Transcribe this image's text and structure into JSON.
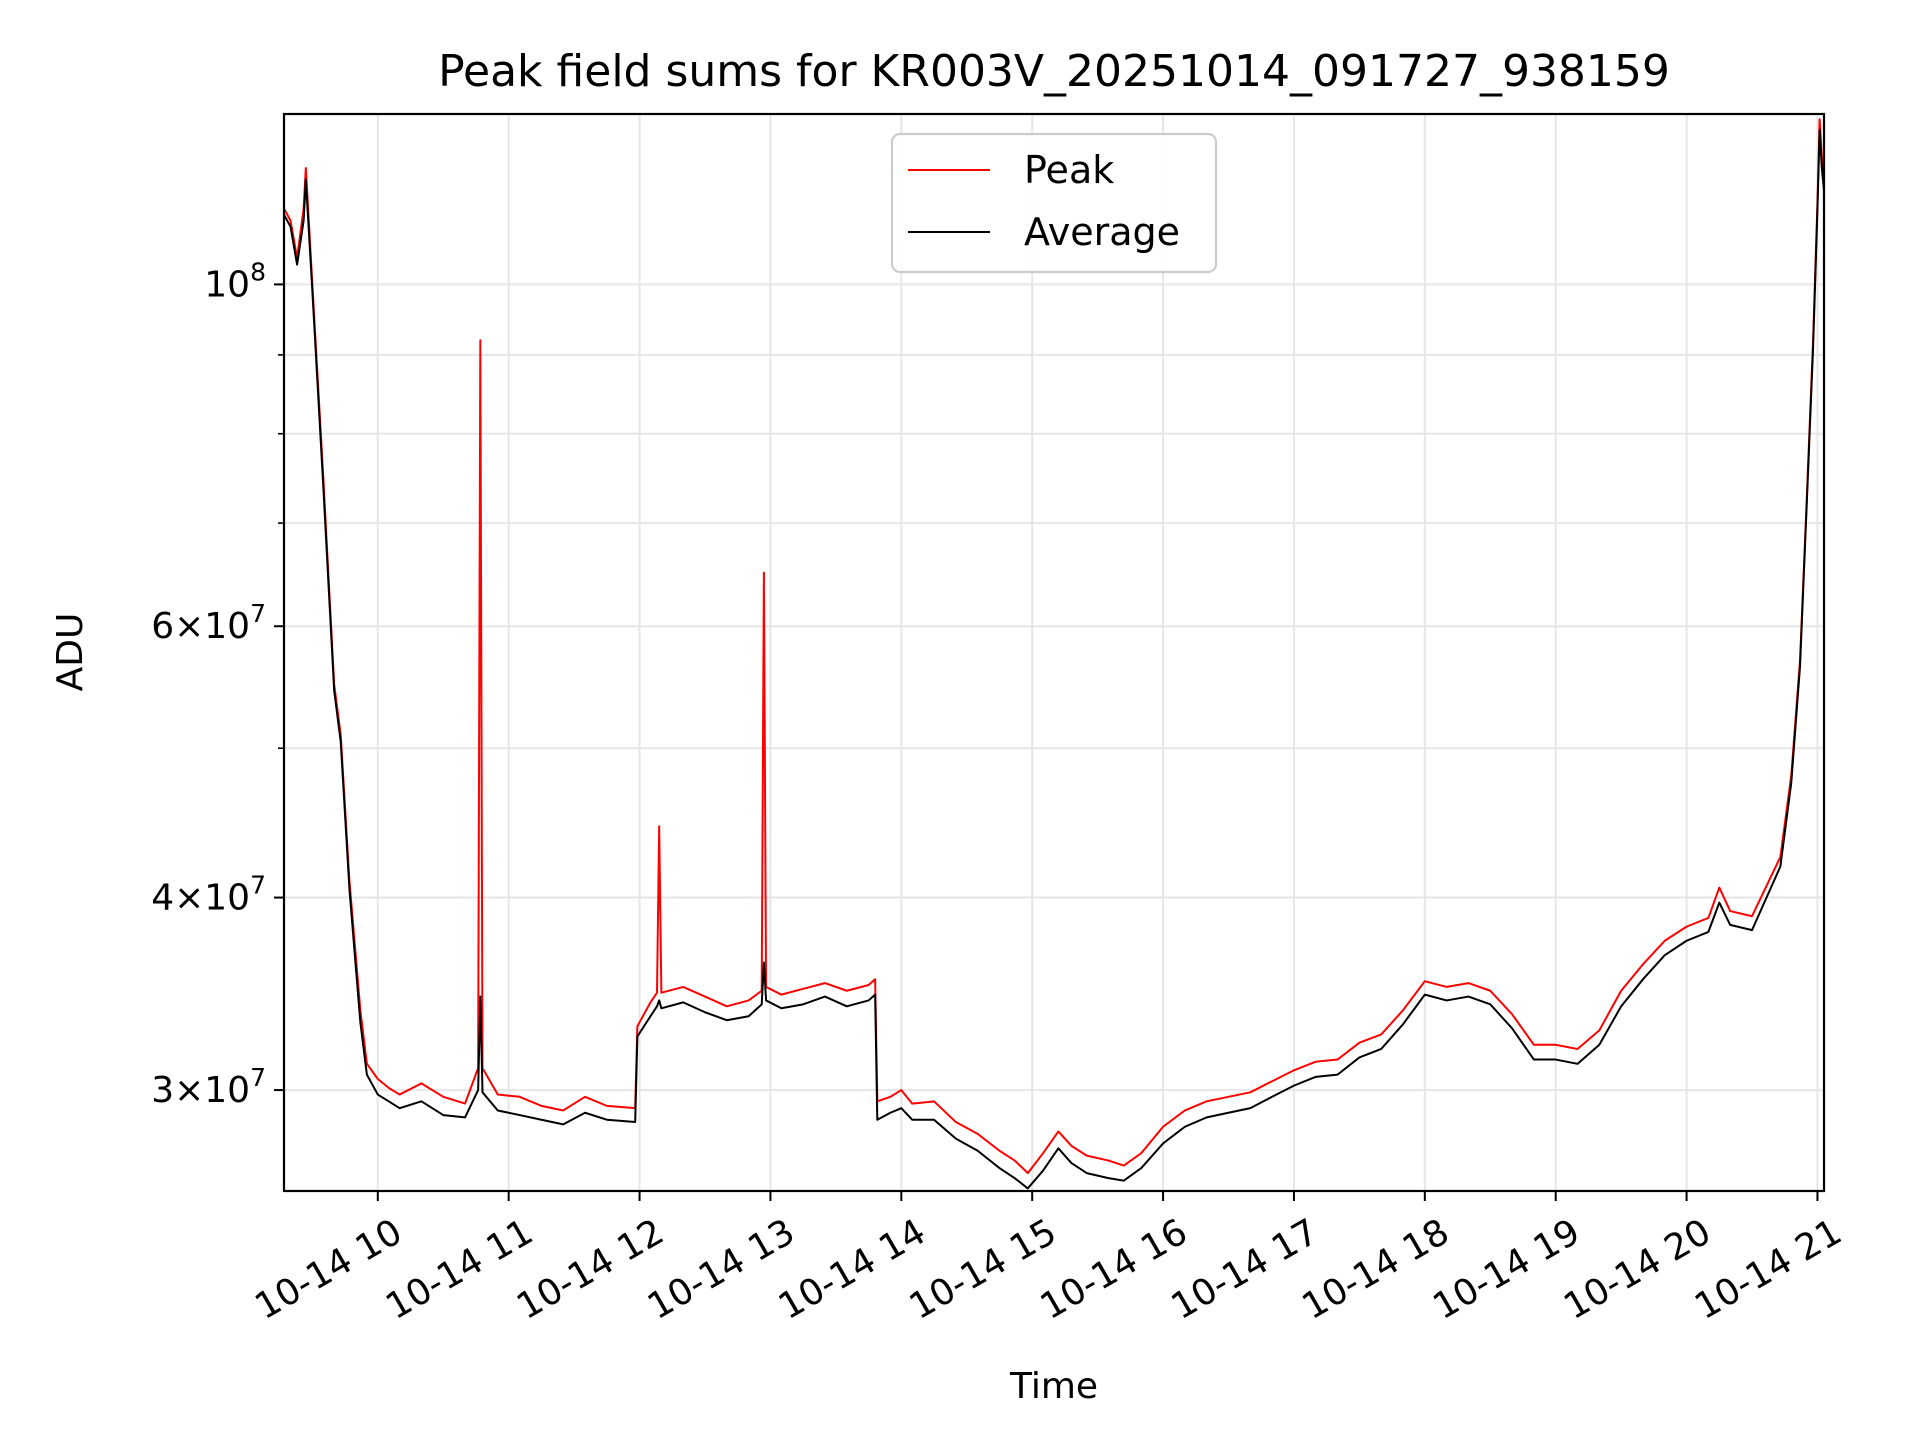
{
  "chart_data": {
    "type": "line",
    "title": "Peak field sums for KR003V_20251014_091727_938159",
    "xlabel": "Time",
    "ylabel": "ADU",
    "y_scale": "log",
    "ylim": [
      25800000,
      129000000
    ],
    "xlim": [
      "2025-10-14 09:17",
      "2025-10-14 21:03"
    ],
    "grid": true,
    "legend": {
      "placement": "top-center",
      "entries": [
        "Peak",
        "Average"
      ]
    },
    "x_tick_labels": [
      "10-14 10",
      "10-14 11",
      "10-14 12",
      "10-14 13",
      "10-14 14",
      "10-14 15",
      "10-14 16",
      "10-14 17",
      "10-14 18",
      "10-14 19",
      "10-14 20",
      "10-14 21"
    ],
    "y_tick_labels": [
      {
        "value": 100000000,
        "mantissa": "",
        "exp": "8"
      },
      {
        "value": 60000000,
        "mantissa": "6",
        "exp": "7"
      },
      {
        "value": 40000000,
        "mantissa": "4",
        "exp": "7"
      },
      {
        "value": 30000000,
        "mantissa": "3",
        "exp": "7"
      }
    ],
    "y_minor_ticks": [
      50000000,
      70000000,
      80000000,
      90000000
    ],
    "series": [
      {
        "name": "Peak",
        "color": "#ff0000",
        "points": [
          [
            "09:17",
            112000000
          ],
          [
            "09:20",
            110000000
          ],
          [
            "09:23",
            104000000
          ],
          [
            "09:26",
            112000000
          ],
          [
            "09:27",
            119000000
          ],
          [
            "09:30",
            100000000
          ],
          [
            "09:35",
            75000000
          ],
          [
            "09:40",
            55000000
          ],
          [
            "09:43",
            51000000
          ],
          [
            "09:47",
            41000000
          ],
          [
            "09:52",
            33800000
          ],
          [
            "09:55",
            31200000
          ],
          [
            "10:00",
            30500000
          ],
          [
            "10:05",
            30100000
          ],
          [
            "10:10",
            29800000
          ],
          [
            "10:20",
            30300000
          ],
          [
            "10:30",
            29700000
          ],
          [
            "10:40",
            29400000
          ],
          [
            "10:46",
            31000000
          ],
          [
            "10:47",
            92000000
          ],
          [
            "10:48",
            31000000
          ],
          [
            "10:55",
            29800000
          ],
          [
            "11:05",
            29700000
          ],
          [
            "11:15",
            29300000
          ],
          [
            "11:25",
            29100000
          ],
          [
            "11:35",
            29700000
          ],
          [
            "11:45",
            29300000
          ],
          [
            "11:58",
            29200000
          ],
          [
            "11:59",
            33000000
          ],
          [
            "12:05",
            34200000
          ],
          [
            "12:08",
            34700000
          ],
          [
            "12:09",
            44500000
          ],
          [
            "12:10",
            34700000
          ],
          [
            "12:20",
            35000000
          ],
          [
            "12:30",
            34500000
          ],
          [
            "12:40",
            34000000
          ],
          [
            "12:50",
            34300000
          ],
          [
            "12:56",
            34800000
          ],
          [
            "12:57",
            65000000
          ],
          [
            "12:58",
            35000000
          ],
          [
            "13:05",
            34600000
          ],
          [
            "13:15",
            34900000
          ],
          [
            "13:25",
            35200000
          ],
          [
            "13:35",
            34800000
          ],
          [
            "13:45",
            35100000
          ],
          [
            "13:48",
            35400000
          ],
          [
            "13:49",
            29500000
          ],
          [
            "13:55",
            29700000
          ],
          [
            "14:00",
            30000000
          ],
          [
            "14:05",
            29400000
          ],
          [
            "14:15",
            29500000
          ],
          [
            "14:25",
            28600000
          ],
          [
            "14:35",
            28100000
          ],
          [
            "14:45",
            27400000
          ],
          [
            "14:52",
            27000000
          ],
          [
            "14:58",
            26500000
          ],
          [
            "15:05",
            27300000
          ],
          [
            "15:12",
            28200000
          ],
          [
            "15:18",
            27600000
          ],
          [
            "15:25",
            27200000
          ],
          [
            "15:35",
            27000000
          ],
          [
            "15:42",
            26800000
          ],
          [
            "15:50",
            27300000
          ],
          [
            "16:00",
            28400000
          ],
          [
            "16:10",
            29100000
          ],
          [
            "16:20",
            29500000
          ],
          [
            "16:30",
            29700000
          ],
          [
            "16:40",
            29900000
          ],
          [
            "16:50",
            30400000
          ],
          [
            "17:00",
            30900000
          ],
          [
            "17:10",
            31300000
          ],
          [
            "17:20",
            31400000
          ],
          [
            "17:30",
            32200000
          ],
          [
            "17:40",
            32600000
          ],
          [
            "17:50",
            33800000
          ],
          [
            "18:00",
            35300000
          ],
          [
            "18:10",
            35000000
          ],
          [
            "18:20",
            35200000
          ],
          [
            "18:30",
            34800000
          ],
          [
            "18:40",
            33600000
          ],
          [
            "18:50",
            32100000
          ],
          [
            "19:00",
            32100000
          ],
          [
            "19:10",
            31900000
          ],
          [
            "19:20",
            32800000
          ],
          [
            "19:30",
            34800000
          ],
          [
            "19:40",
            36200000
          ],
          [
            "19:50",
            37500000
          ],
          [
            "20:00",
            38300000
          ],
          [
            "20:10",
            38800000
          ],
          [
            "20:15",
            40600000
          ],
          [
            "20:20",
            39200000
          ],
          [
            "20:30",
            38900000
          ],
          [
            "20:37",
            40800000
          ],
          [
            "20:43",
            42500000
          ],
          [
            "20:48",
            48000000
          ],
          [
            "20:52",
            57000000
          ],
          [
            "20:55",
            72000000
          ],
          [
            "20:58",
            92000000
          ],
          [
            "21:00",
            113000000
          ],
          [
            "21:01",
            128000000
          ],
          [
            "21:02",
            121000000
          ],
          [
            "21:03",
            116000000
          ]
        ]
      },
      {
        "name": "Average",
        "color": "#000000",
        "points": [
          [
            "09:17",
            111000000
          ],
          [
            "09:20",
            109000000
          ],
          [
            "09:23",
            103000000
          ],
          [
            "09:26",
            110000000
          ],
          [
            "09:27",
            117000000
          ],
          [
            "09:30",
            99000000
          ],
          [
            "09:35",
            74000000
          ],
          [
            "09:40",
            54500000
          ],
          [
            "09:43",
            50500000
          ],
          [
            "09:47",
            40500000
          ],
          [
            "09:52",
            33200000
          ],
          [
            "09:55",
            30700000
          ],
          [
            "10:00",
            29800000
          ],
          [
            "10:05",
            29500000
          ],
          [
            "10:10",
            29200000
          ],
          [
            "10:20",
            29500000
          ],
          [
            "10:30",
            28900000
          ],
          [
            "10:40",
            28800000
          ],
          [
            "10:46",
            30000000
          ],
          [
            "10:47",
            34500000
          ],
          [
            "10:48",
            29900000
          ],
          [
            "10:55",
            29100000
          ],
          [
            "11:05",
            28900000
          ],
          [
            "11:15",
            28700000
          ],
          [
            "11:25",
            28500000
          ],
          [
            "11:35",
            29000000
          ],
          [
            "11:45",
            28700000
          ],
          [
            "11:58",
            28600000
          ],
          [
            "11:59",
            32500000
          ],
          [
            "12:05",
            33500000
          ],
          [
            "12:08",
            34000000
          ],
          [
            "12:09",
            34300000
          ],
          [
            "12:10",
            33900000
          ],
          [
            "12:20",
            34200000
          ],
          [
            "12:30",
            33700000
          ],
          [
            "12:40",
            33300000
          ],
          [
            "12:50",
            33500000
          ],
          [
            "12:56",
            34100000
          ],
          [
            "12:57",
            36300000
          ],
          [
            "12:58",
            34300000
          ],
          [
            "13:05",
            33900000
          ],
          [
            "13:15",
            34100000
          ],
          [
            "13:25",
            34500000
          ],
          [
            "13:35",
            34000000
          ],
          [
            "13:45",
            34300000
          ],
          [
            "13:48",
            34600000
          ],
          [
            "13:49",
            28700000
          ],
          [
            "13:55",
            29000000
          ],
          [
            "14:00",
            29200000
          ],
          [
            "14:05",
            28700000
          ],
          [
            "14:15",
            28700000
          ],
          [
            "14:25",
            27900000
          ],
          [
            "14:35",
            27400000
          ],
          [
            "14:45",
            26700000
          ],
          [
            "14:52",
            26300000
          ],
          [
            "14:58",
            25900000
          ],
          [
            "15:05",
            26600000
          ],
          [
            "15:12",
            27500000
          ],
          [
            "15:18",
            26900000
          ],
          [
            "15:25",
            26500000
          ],
          [
            "15:35",
            26300000
          ],
          [
            "15:42",
            26200000
          ],
          [
            "15:50",
            26700000
          ],
          [
            "16:00",
            27700000
          ],
          [
            "16:10",
            28400000
          ],
          [
            "16:20",
            28800000
          ],
          [
            "16:30",
            29000000
          ],
          [
            "16:40",
            29200000
          ],
          [
            "16:50",
            29700000
          ],
          [
            "17:00",
            30200000
          ],
          [
            "17:10",
            30600000
          ],
          [
            "17:20",
            30700000
          ],
          [
            "17:30",
            31500000
          ],
          [
            "17:40",
            31900000
          ],
          [
            "17:50",
            33100000
          ],
          [
            "18:00",
            34600000
          ],
          [
            "18:10",
            34300000
          ],
          [
            "18:20",
            34500000
          ],
          [
            "18:30",
            34100000
          ],
          [
            "18:40",
            32900000
          ],
          [
            "18:50",
            31400000
          ],
          [
            "19:00",
            31400000
          ],
          [
            "19:10",
            31200000
          ],
          [
            "19:20",
            32100000
          ],
          [
            "19:30",
            34000000
          ],
          [
            "19:40",
            35400000
          ],
          [
            "19:50",
            36700000
          ],
          [
            "20:00",
            37500000
          ],
          [
            "20:10",
            38000000
          ],
          [
            "20:15",
            39700000
          ],
          [
            "20:20",
            38400000
          ],
          [
            "20:30",
            38100000
          ],
          [
            "20:37",
            40100000
          ],
          [
            "20:43",
            41900000
          ],
          [
            "20:48",
            47500000
          ],
          [
            "20:52",
            56500000
          ],
          [
            "20:55",
            71500000
          ],
          [
            "20:58",
            91000000
          ],
          [
            "21:00",
            112000000
          ],
          [
            "21:01",
            126000000
          ],
          [
            "21:02",
            119000000
          ],
          [
            "21:03",
            115000000
          ]
        ]
      }
    ]
  }
}
